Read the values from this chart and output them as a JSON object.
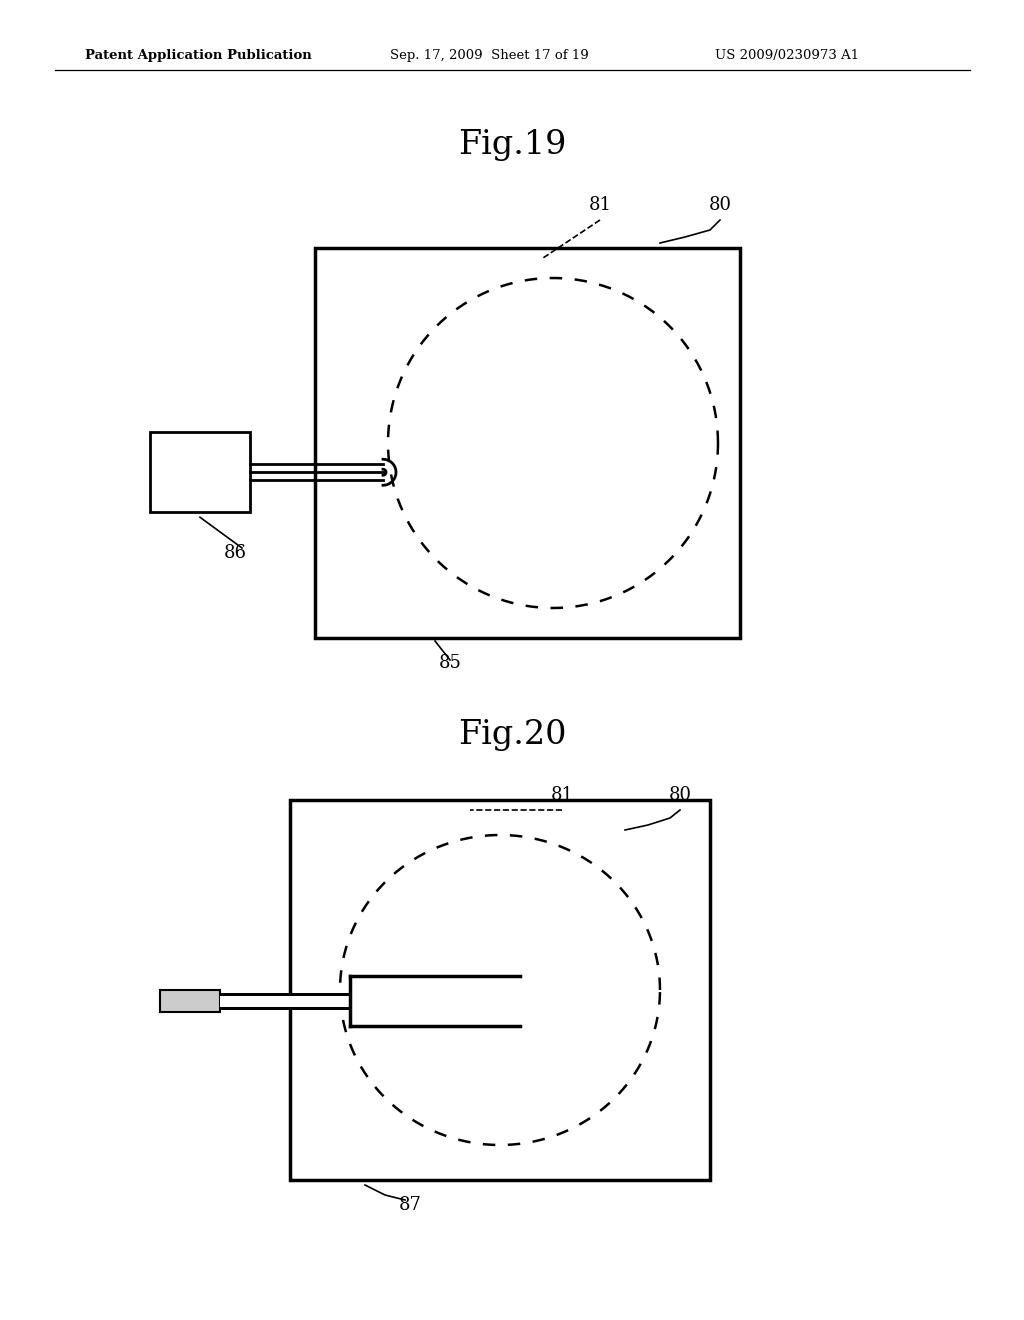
{
  "background_color": "#ffffff",
  "header_left": "Patent Application Publication",
  "header_mid": "Sep. 17, 2009  Sheet 17 of 19",
  "header_right": "US 2009/0230973 A1",
  "fig19_title": "Fig.19",
  "fig20_title": "Fig.20",
  "label_80": "80",
  "label_81": "81",
  "label_85": "85",
  "label_86": "86",
  "label_87": "87"
}
